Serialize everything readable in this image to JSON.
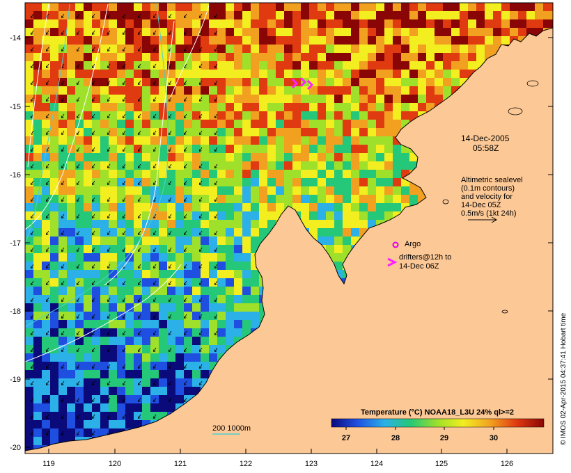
{
  "map": {
    "longitude_ticks": [
      "119",
      "120",
      "121",
      "122",
      "123",
      "124",
      "125",
      "126"
    ],
    "latitude_ticks": [
      "-14",
      "-15",
      "-16",
      "-17",
      "-18",
      "-19",
      "-20"
    ],
    "date": "14-Dec-2005",
    "time": "05:58Z",
    "altimetry_note": [
      "Altimetric sealevel",
      "(0.1m contours)",
      "and velocity for",
      "14-Dec 05Z"
    ],
    "velocity_scale_label": "0.5m/s (1kt 24h)",
    "argo_label": "Argo",
    "drifters_label": [
      "drifters@12h to",
      "14-Dec 06Z"
    ],
    "isobath_label": "200  1000m",
    "colorbar_title": "Temperature (°C) NOAA18_L3U 24% ql>=2",
    "colorbar_ticks": [
      "27",
      "28",
      "29",
      "30"
    ],
    "credit": "© IMOS 02-Apr-2015 04:37:41 Hobart time",
    "colors": {
      "land": "#fcc896",
      "contour": "#ffffff",
      "isobath": "#4fd0d0",
      "argo": "#e000e0",
      "drifter": "#ff20ff"
    }
  }
}
